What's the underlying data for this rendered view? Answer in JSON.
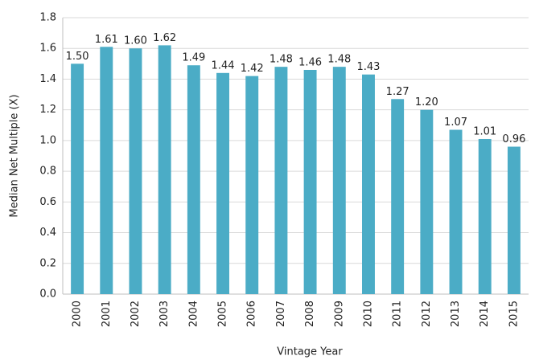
{
  "chart_data": {
    "type": "bar",
    "x_label": "Vintage Year",
    "y_label": "Median Net Multiple (X)",
    "categories": [
      "2000",
      "2001",
      "2002",
      "2003",
      "2004",
      "2005",
      "2006",
      "2007",
      "2008",
      "2009",
      "2010",
      "2011",
      "2012",
      "2013",
      "2014",
      "2015"
    ],
    "values": [
      1.5,
      1.61,
      1.6,
      1.62,
      1.49,
      1.44,
      1.42,
      1.48,
      1.46,
      1.48,
      1.43,
      1.27,
      1.2,
      1.07,
      1.01,
      0.96
    ],
    "value_labels": [
      "1.50",
      "1.61",
      "1.60",
      "1.62",
      "1.49",
      "1.44",
      "1.42",
      "1.48",
      "1.46",
      "1.48",
      "1.43",
      "1.27",
      "1.20",
      "1.07",
      "1.01",
      "0.96"
    ],
    "color": "#4bacc6",
    "ylim": [
      0,
      1.8
    ],
    "yticks": [
      {
        "value": 0,
        "label": "0.0"
      },
      {
        "value": 0.2,
        "label": "0.2"
      },
      {
        "value": 0.4,
        "label": "0.4"
      },
      {
        "value": 0.6,
        "label": "0.6"
      },
      {
        "value": 0.8,
        "label": "0.8"
      },
      {
        "value": 1,
        "label": "1.0"
      },
      {
        "value": 1.2,
        "label": "1.2"
      },
      {
        "value": 1.4,
        "label": "1.4"
      },
      {
        "value": 1.6,
        "label": "1.6"
      },
      {
        "value": 1.8,
        "label": "1.8"
      }
    ],
    "grid": true
  }
}
